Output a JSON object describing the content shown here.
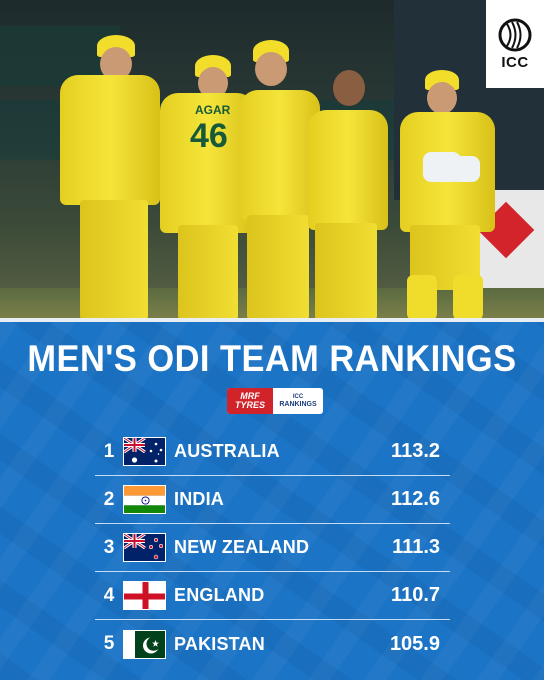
{
  "logo": {
    "text": "ICC",
    "icon": "icc-cricket-ball-icon"
  },
  "title": "MEN'S ODI TEAM RANKINGS",
  "sponsor": {
    "brand_line1": "MRF",
    "brand_line2": "TYRES",
    "badge_line1": "ICC",
    "badge_line2": "RANKINGS"
  },
  "photo": {
    "jersey_number": "46",
    "jersey_name": "AGAR"
  },
  "rankings": [
    {
      "rank": "1",
      "team": "AUSTRALIA",
      "points": "113.2",
      "flag": "australia-flag-icon"
    },
    {
      "rank": "2",
      "team": "INDIA",
      "points": "112.6",
      "flag": "india-flag-icon"
    },
    {
      "rank": "3",
      "team": "NEW ZEALAND",
      "points": "111.3",
      "flag": "new-zealand-flag-icon"
    },
    {
      "rank": "4",
      "team": "ENGLAND",
      "points": "110.7",
      "flag": "england-flag-icon"
    },
    {
      "rank": "5",
      "team": "PAKISTAN",
      "points": "105.9",
      "flag": "pakistan-flag-icon"
    }
  ],
  "colors": {
    "panel": "#1b74c5",
    "kit": "#f2de2a",
    "text": "#ffffff"
  }
}
